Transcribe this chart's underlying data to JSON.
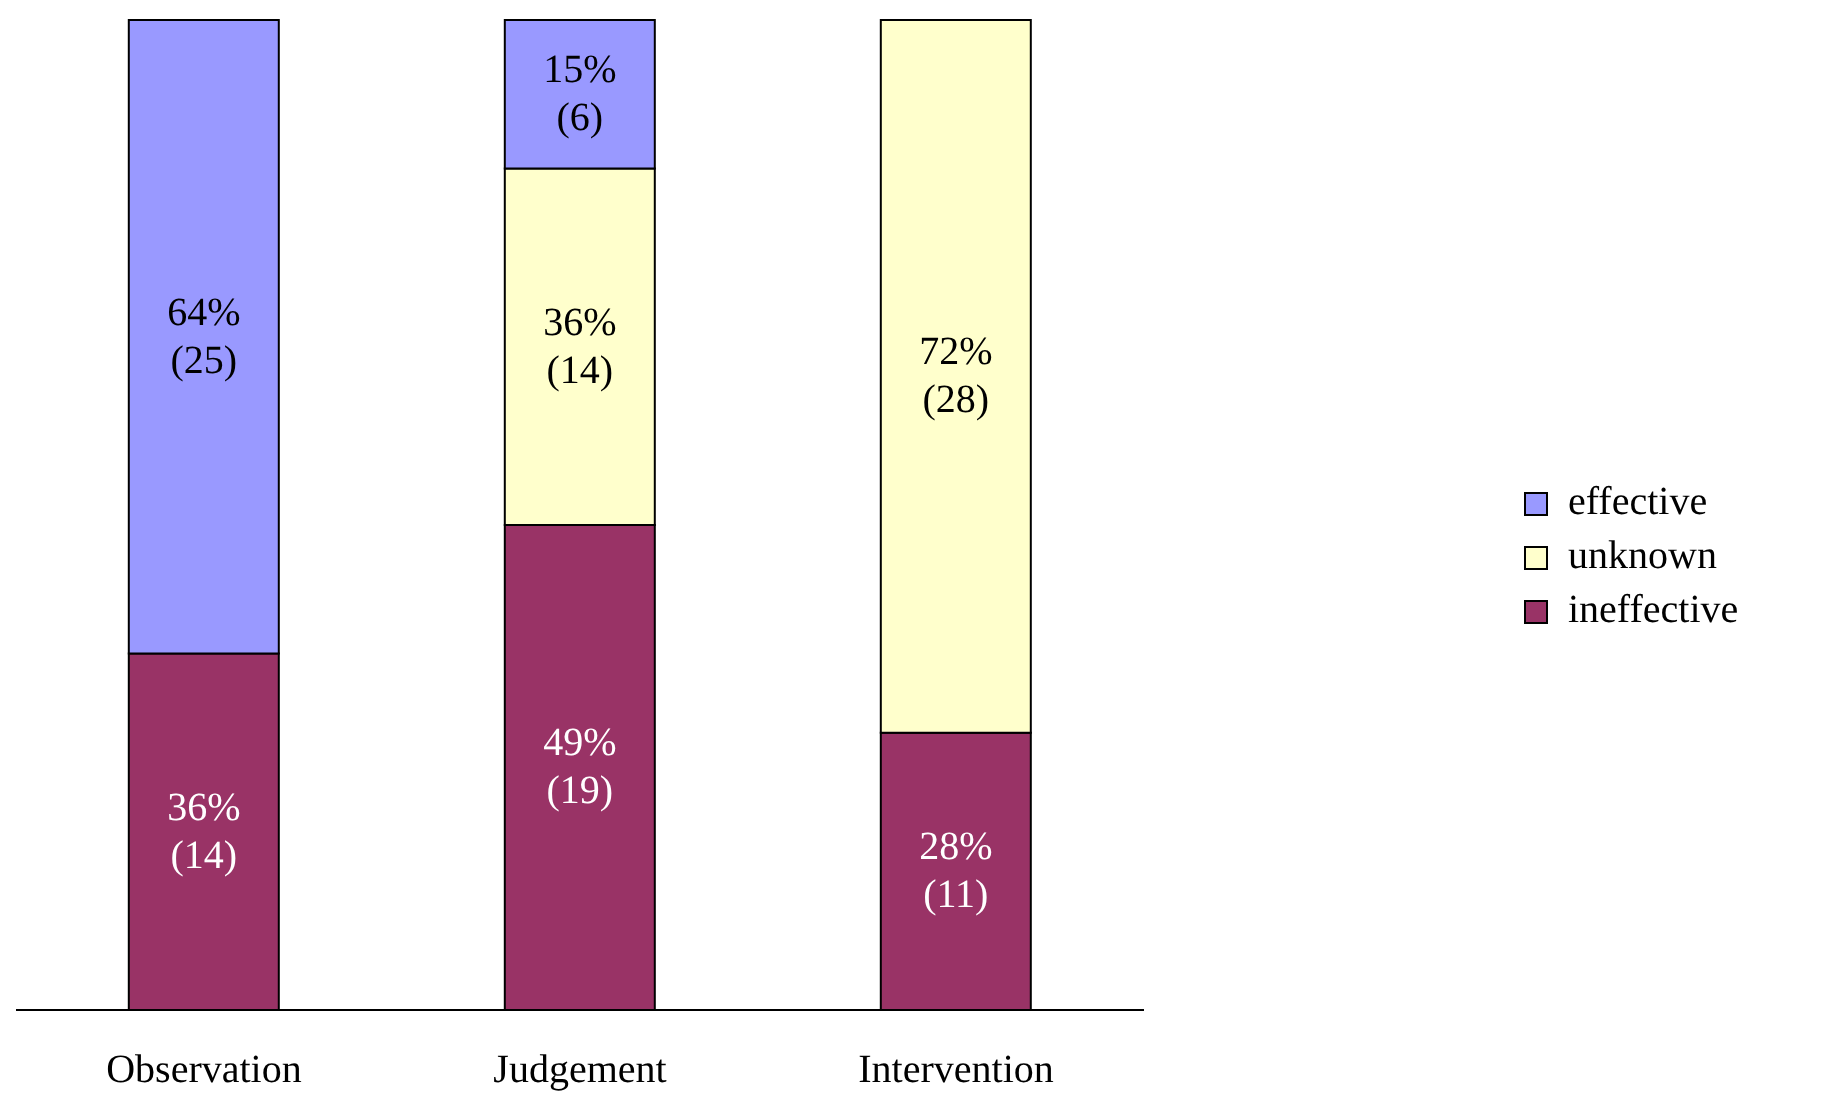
{
  "chart_data": {
    "type": "bar",
    "stacked": true,
    "categories": [
      "Observation",
      "Judgement",
      "Intervention"
    ],
    "series": [
      {
        "name": "ineffective",
        "color": "#993366",
        "values": [
          36,
          49,
          28
        ],
        "value_labels": [
          "36% (14)",
          "49% (19)",
          "28% (11)"
        ]
      },
      {
        "name": "unknown",
        "color": "#ffffcc",
        "values": [
          null,
          36,
          72
        ],
        "value_labels": [
          null,
          "36% (14)",
          "72% (28)"
        ]
      },
      {
        "name": "effective",
        "color": "#9999ff",
        "values": [
          64,
          15,
          null
        ],
        "value_labels": [
          "64% (25)",
          "15% (6)",
          null
        ]
      }
    ],
    "legend": "right",
    "grid": false
  }
}
